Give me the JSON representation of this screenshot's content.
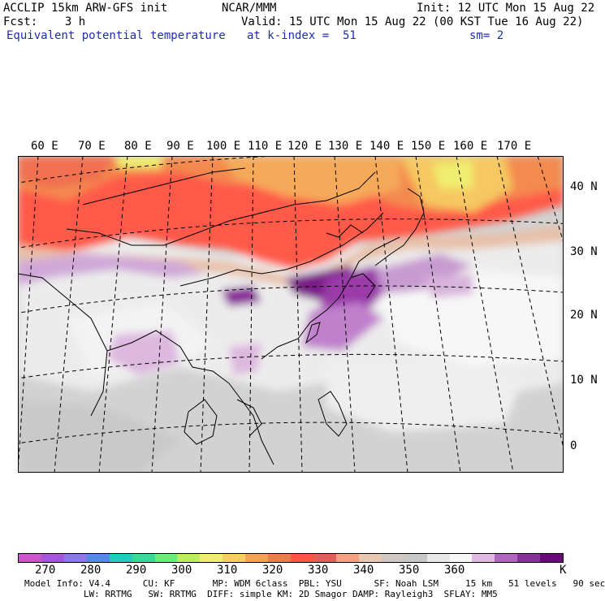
{
  "header": {
    "line1_left": "ACCLIP 15km ARW-GFS init",
    "line1_center": "NCAR/MMM",
    "line1_right": "Init: 12 UTC Mon 15 Aug 22",
    "line2_left": "Fcst:    3 h",
    "line2_right": "Valid: 15 UTC Mon 15 Aug 22 (00 KST Tue 16 Aug 22)",
    "line3_left": "Equivalent potential temperature",
    "line3_center": "at k-index =  51",
    "line3_right": "sm= 2"
  },
  "map": {
    "lon_labels": [
      "60 E",
      "70 E",
      "80 E",
      "90 E",
      "100 E",
      "110 E",
      "120 E",
      "130 E",
      "140 E",
      "150 E",
      "160 E",
      "170 E"
    ],
    "lat_labels": [
      "40 N",
      "30 N",
      "20 N",
      "10 N",
      "0"
    ]
  },
  "colorbar": {
    "colors": [
      "#cc55cc",
      "#a855dd",
      "#8877ee",
      "#5588ee",
      "#22ccbb",
      "#33dd99",
      "#66ee77",
      "#bbf055",
      "#f0ee66",
      "#f8d055",
      "#f5a055",
      "#f07a4a",
      "#ff5544",
      "#e95a5a",
      "#f5a080",
      "#e8c8b0",
      "#d0c8c0",
      "#c8c8c8",
      "#e8e8e8",
      "#f8f8f8",
      "#e0b8e0",
      "#b066c0",
      "#883399",
      "#6a0a7a"
    ],
    "labels": [
      "270",
      "280",
      "290",
      "300",
      "310",
      "320",
      "330",
      "340",
      "350",
      "360"
    ],
    "unit": "K"
  },
  "footer": {
    "line1": "Model Info: V4.4      CU: KF       MP: WDM 6class  PBL: YSU      SF: Noah LSM     15 km   51 levels   90 sec",
    "line2": "           LW: RRTMG   SW: RRTMG  DIFF: simple KM: 2D Smagor DAMP: Rayleigh3  SFLAY: MM5"
  }
}
